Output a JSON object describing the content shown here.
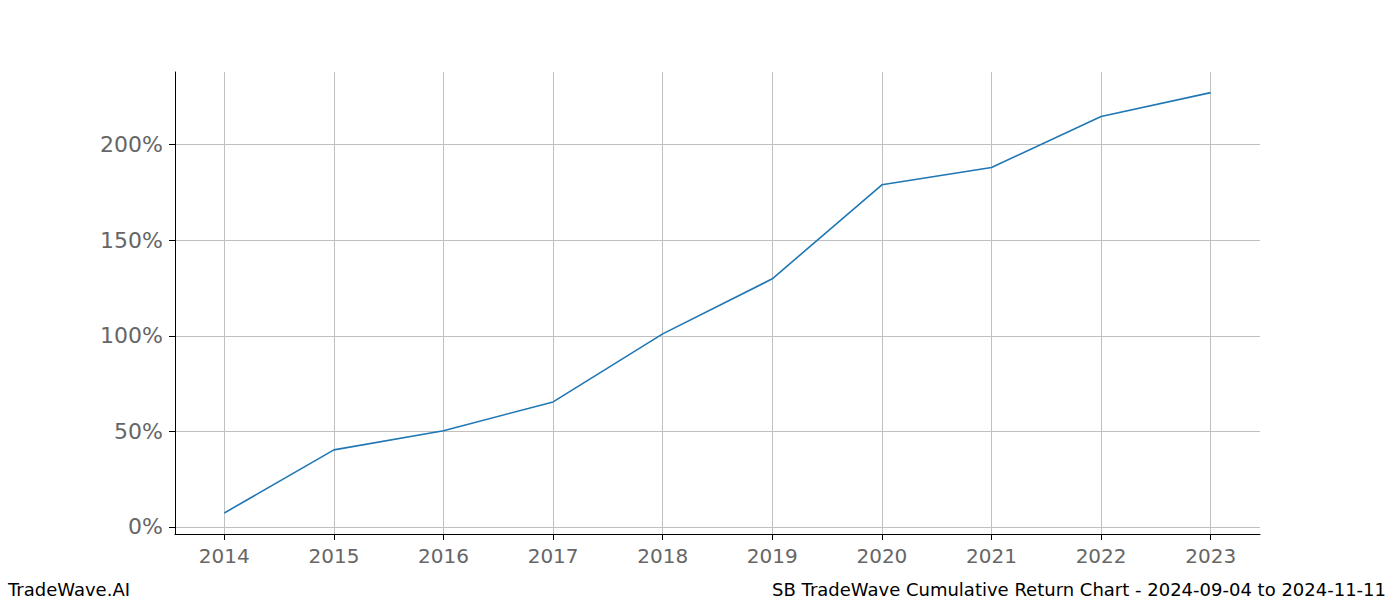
{
  "chart_data": {
    "type": "line",
    "title": "SB TradeWave Cumulative Return Chart - 2024-09-04 to 2024-11-11",
    "source": "TradeWave.AI",
    "x": [
      2014,
      2015,
      2016,
      2017,
      2018,
      2019,
      2020,
      2021,
      2022,
      2023
    ],
    "values": [
      7.3,
      40.3,
      50.3,
      65.4,
      101,
      129.8,
      179,
      188,
      214.7,
      227.2
    ],
    "color": "#1f77b4",
    "xlim": [
      2013.55,
      2023.45
    ],
    "xticks": [
      2014,
      2015,
      2016,
      2017,
      2018,
      2019,
      2020,
      2021,
      2022,
      2023
    ],
    "ylim": [
      -3.7,
      238
    ],
    "yticks": [
      {
        "value": 0,
        "label": "0%"
      },
      {
        "value": 50,
        "label": "50%"
      },
      {
        "value": 100,
        "label": "100%"
      },
      {
        "value": 150,
        "label": "150%"
      },
      {
        "value": 200,
        "label": "200%"
      }
    ],
    "grid": true
  }
}
